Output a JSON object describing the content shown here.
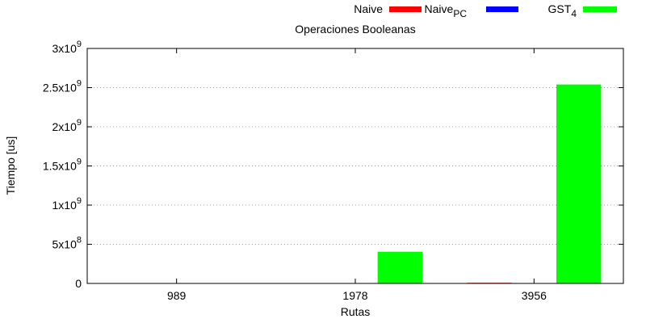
{
  "chart_data": {
    "type": "bar",
    "title": "Operaciones Booleanas",
    "xlabel": "Rutas",
    "ylabel": "Tiempo [us]",
    "categories": [
      "989",
      "1978",
      "3956"
    ],
    "ylim": [
      0,
      3000000000
    ],
    "yticks": [
      {
        "value": 0,
        "mantissa": "0",
        "exp": ""
      },
      {
        "value": 500000000,
        "mantissa": "5x10",
        "exp": "8"
      },
      {
        "value": 1000000000,
        "mantissa": "1x10",
        "exp": "9"
      },
      {
        "value": 1500000000,
        "mantissa": "1.5x10",
        "exp": "9"
      },
      {
        "value": 2000000000,
        "mantissa": "2x10",
        "exp": "9"
      },
      {
        "value": 2500000000,
        "mantissa": "2.5x10",
        "exp": "9"
      },
      {
        "value": 3000000000,
        "mantissa": "3x10",
        "exp": "9"
      }
    ],
    "grid": "horizontal-dotted",
    "legend_position": "top-right",
    "series": [
      {
        "name": "Naive",
        "sub": "",
        "color": "#ff0000",
        "values": [
          0,
          0,
          8000000
        ]
      },
      {
        "name": "Naive",
        "sub": "PC",
        "color": "#0000ff",
        "values": [
          0,
          0,
          0
        ]
      },
      {
        "name": "GST",
        "sub": "4",
        "color": "#00ff00",
        "values": [
          0,
          405000000,
          2540000000
        ]
      }
    ]
  }
}
